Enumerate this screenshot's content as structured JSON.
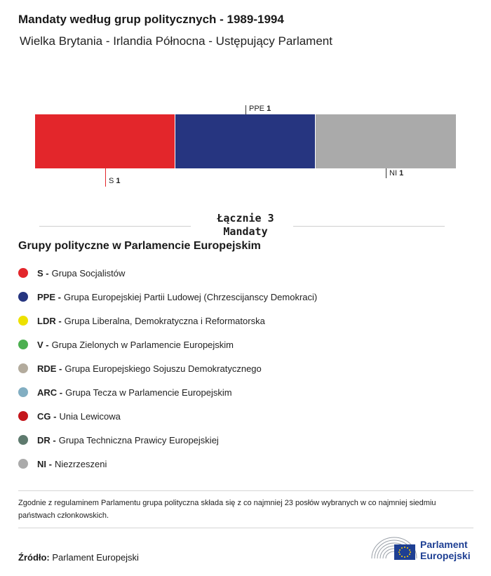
{
  "header": {
    "title": "Mandaty według grup politycznych - 1989-1994",
    "subtitle": "Wielka Brytania - Irlandia Północna - Ustępujący Parlament"
  },
  "chart_data": {
    "type": "bar",
    "stacked": true,
    "orientation": "horizontal",
    "series": [
      {
        "name": "S",
        "value": 1,
        "color": "#e3262b"
      },
      {
        "name": "PPE",
        "value": 1,
        "color": "#263580"
      },
      {
        "name": "NI",
        "value": 1,
        "color": "#aaaaaa"
      }
    ],
    "labels": [
      {
        "abbr": "S",
        "value": "1"
      },
      {
        "abbr": "PPE",
        "value": "1"
      },
      {
        "abbr": "NI",
        "value": "1"
      }
    ]
  },
  "total": {
    "line1": "Łącznie 3",
    "line2": "Mandaty"
  },
  "legend": {
    "title": "Grupy polityczne w Parlamencie Europejskim",
    "items": [
      {
        "abbr": "S -",
        "name": "Grupa Socjalistów",
        "color": "#e3262b"
      },
      {
        "abbr": "PPE -",
        "name": "Grupa Europejskiej Partii Ludowej (Chrzescijanscy Demokraci)",
        "color": "#263580"
      },
      {
        "abbr": "LDR -",
        "name": "Grupa Liberalna, Demokratyczna i Reformatorska",
        "color": "#ede100"
      },
      {
        "abbr": "V -",
        "name": "Grupa Zielonych w Parlamencie Europejskim",
        "color": "#4caf50"
      },
      {
        "abbr": "RDE -",
        "name": "Grupa Europejskiego Sojuszu Demokratycznego",
        "color": "#b3ab9d"
      },
      {
        "abbr": "ARC -",
        "name": "Grupa Tecza w Parlamencie Europejskim",
        "color": "#82aec2"
      },
      {
        "abbr": "CG -",
        "name": "Unia Lewicowa",
        "color": "#c4161c"
      },
      {
        "abbr": "DR -",
        "name": "Grupa Techniczna Prawicy Europejskiej",
        "color": "#5e7a6e"
      },
      {
        "abbr": "NI -",
        "name": "Niezrzeszeni",
        "color": "#aaaaaa"
      }
    ]
  },
  "footer": {
    "note": "Zgodnie z regulaminem Parlamentu grupa polityczna składa się z co najmniej 23 posłów wybranych w co najmniej siedmiu państwach członkowskich.",
    "source_label": "Źródło:",
    "source_value": "Parlament Europejski",
    "logo_line1": "Parlament",
    "logo_line2": "Europejski"
  }
}
